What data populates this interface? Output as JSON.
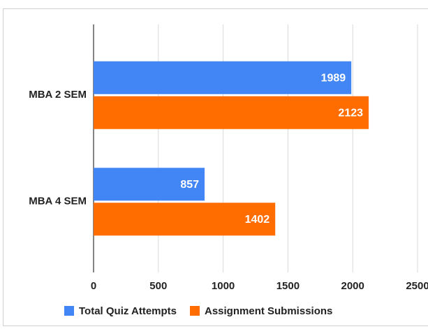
{
  "chart_data": {
    "type": "bar",
    "orientation": "horizontal",
    "categories": [
      "MBA 2 SEM",
      "MBA 4 SEM"
    ],
    "series": [
      {
        "name": "Total Quiz Attempts",
        "color": "#4285f4",
        "values": [
          1989,
          857
        ]
      },
      {
        "name": "Assignment Submissions",
        "color": "#ff6d01",
        "values": [
          2123,
          1402
        ]
      }
    ],
    "xlim": [
      0,
      2500
    ],
    "xticks": [
      0,
      500,
      1000,
      1500,
      2000,
      2500
    ],
    "grid": true,
    "legend": "bottom"
  }
}
